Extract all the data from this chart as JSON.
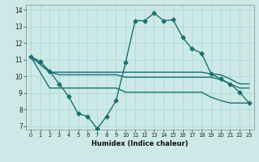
{
  "xlabel": "Humidex (Indice chaleur)",
  "x_ticks": [
    0,
    1,
    2,
    3,
    4,
    5,
    6,
    7,
    8,
    9,
    10,
    11,
    12,
    13,
    14,
    15,
    16,
    17,
    18,
    19,
    20,
    21,
    22,
    23
  ],
  "y_ticks": [
    7,
    8,
    9,
    10,
    11,
    12,
    13,
    14
  ],
  "xlim": [
    -0.5,
    23.5
  ],
  "ylim": [
    6.8,
    14.3
  ],
  "background_color": "#cce9e7",
  "grid_color": "#aad4d2",
  "line_color": "#1a7070",
  "series": [
    {
      "x": [
        0,
        1,
        2,
        3,
        4,
        5,
        6,
        7,
        8,
        9,
        10,
        11,
        12,
        13,
        14,
        15,
        16,
        17,
        18,
        19,
        20,
        21,
        22,
        23
      ],
      "y": [
        11.2,
        10.9,
        10.3,
        9.55,
        8.8,
        7.75,
        7.6,
        6.85,
        7.6,
        8.55,
        10.85,
        13.35,
        13.35,
        13.8,
        13.35,
        13.4,
        12.35,
        11.65,
        11.4,
        10.15,
        9.85,
        9.55,
        9.05,
        8.4
      ],
      "marker": "D",
      "markersize": 2.5,
      "linewidth": 1.0
    },
    {
      "x": [
        0,
        2,
        3,
        4,
        5,
        6,
        7,
        8,
        9,
        10,
        11,
        12,
        13,
        14,
        15,
        16,
        17,
        18,
        19,
        20,
        21,
        22,
        23
      ],
      "y": [
        11.2,
        10.25,
        10.25,
        10.25,
        10.25,
        10.25,
        10.25,
        10.25,
        10.25,
        10.25,
        10.25,
        10.25,
        10.25,
        10.25,
        10.25,
        10.25,
        10.25,
        10.25,
        10.15,
        10.1,
        9.85,
        9.55,
        9.55
      ],
      "marker": null,
      "linewidth": 1.0
    },
    {
      "x": [
        0,
        2,
        3,
        4,
        5,
        6,
        7,
        8,
        9,
        10,
        11,
        12,
        13,
        14,
        15,
        16,
        17,
        18,
        19,
        20,
        21,
        22,
        23
      ],
      "y": [
        11.2,
        10.25,
        10.1,
        10.1,
        10.1,
        10.1,
        10.1,
        10.1,
        10.1,
        9.95,
        9.95,
        9.95,
        9.95,
        9.95,
        9.95,
        9.95,
        9.95,
        9.95,
        9.95,
        9.8,
        9.55,
        9.3,
        9.3
      ],
      "marker": null,
      "linewidth": 1.0
    },
    {
      "x": [
        0,
        2,
        3,
        4,
        5,
        6,
        7,
        8,
        9,
        10,
        11,
        12,
        13,
        14,
        15,
        16,
        17,
        18,
        19,
        20,
        21,
        22,
        23
      ],
      "y": [
        11.2,
        9.3,
        9.3,
        9.3,
        9.3,
        9.3,
        9.3,
        9.3,
        9.3,
        9.05,
        9.05,
        9.05,
        9.05,
        9.05,
        9.05,
        9.05,
        9.05,
        9.05,
        8.75,
        8.55,
        8.4,
        8.4,
        8.4
      ],
      "marker": null,
      "linewidth": 1.0
    }
  ]
}
